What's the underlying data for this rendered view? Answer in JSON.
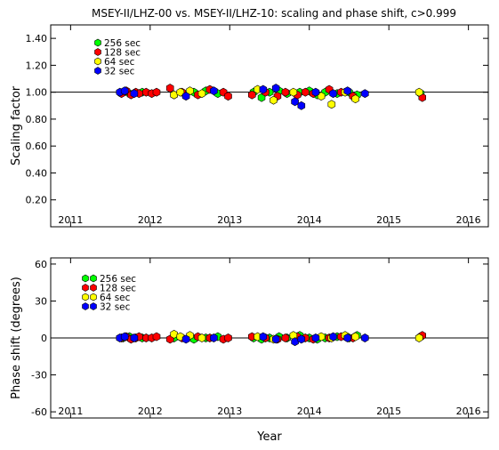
{
  "title": "MSEY-II/LHZ-00 vs. MSEY-II/LHZ-10: scaling and phase shift, c>0.999",
  "colors": {
    "s256": "#00ff00",
    "s128": "#ff0000",
    "s64": "#ffff00",
    "s32": "#0000ff",
    "marker_edge": "#000000",
    "axis": "#000000"
  },
  "chart_data": [
    {
      "type": "scatter",
      "ylabel": "Scaling factor",
      "xlabel": "",
      "xlim": [
        2010.75,
        2016.25
      ],
      "ylim": [
        0,
        1.5
      ],
      "x_ticks": [
        2011,
        2012,
        2013,
        2014,
        2015,
        2016
      ],
      "x_tick_labels": [
        "2011",
        "2012",
        "2013",
        "2014",
        "2015",
        "2016"
      ],
      "y_ticks": [
        0.2,
        0.4,
        0.6,
        0.8,
        1.0,
        1.2,
        1.4
      ],
      "y_tick_labels": [
        "0.20",
        "0.40",
        "0.60",
        "0.80",
        "1.00",
        "1.20",
        "1.40"
      ],
      "reference_line": 1.0,
      "legend": [
        "256 sec",
        "128 sec",
        "64 sec",
        "32 sec"
      ],
      "legend_placement": "top-left",
      "series": [
        {
          "name": "256 sec",
          "points": [
            [
              2011.66,
              1.0
            ],
            [
              2011.74,
              0.99
            ],
            [
              2011.9,
              1.0
            ],
            [
              2012.3,
              0.98
            ],
            [
              2012.55,
              1.0
            ],
            [
              2012.7,
              1.01
            ],
            [
              2012.85,
              0.99
            ],
            [
              2013.3,
              1.0
            ],
            [
              2013.4,
              0.96
            ],
            [
              2013.5,
              1.0
            ],
            [
              2013.62,
              1.01
            ],
            [
              2013.72,
              0.99
            ],
            [
              2013.88,
              1.0
            ],
            [
              2014.0,
              1.01
            ],
            [
              2014.1,
              0.98
            ],
            [
              2014.2,
              1.0
            ],
            [
              2014.35,
              0.99
            ],
            [
              2014.5,
              1.0
            ],
            [
              2014.6,
              0.98
            ],
            [
              2015.4,
              0.99
            ]
          ]
        },
        {
          "name": "128 sec",
          "points": [
            [
              2011.64,
              0.99
            ],
            [
              2011.7,
              1.01
            ],
            [
              2011.76,
              0.98
            ],
            [
              2011.82,
              1.0
            ],
            [
              2011.86,
              0.99
            ],
            [
              2011.95,
              1.0
            ],
            [
              2012.02,
              0.99
            ],
            [
              2012.08,
              1.0
            ],
            [
              2012.25,
              1.03
            ],
            [
              2012.4,
              1.0
            ],
            [
              2012.6,
              0.98
            ],
            [
              2012.75,
              1.02
            ],
            [
              2012.92,
              1.0
            ],
            [
              2012.98,
              0.97
            ],
            [
              2013.28,
              0.98
            ],
            [
              2013.45,
              1.0
            ],
            [
              2013.6,
              0.97
            ],
            [
              2013.7,
              1.0
            ],
            [
              2013.85,
              0.98
            ],
            [
              2013.95,
              1.0
            ],
            [
              2014.05,
              0.99
            ],
            [
              2014.25,
              1.02
            ],
            [
              2014.4,
              1.0
            ],
            [
              2014.55,
              0.97
            ],
            [
              2015.42,
              0.96
            ]
          ]
        },
        {
          "name": "64 sec",
          "points": [
            [
              2012.3,
              0.98
            ],
            [
              2012.38,
              1.0
            ],
            [
              2012.5,
              1.01
            ],
            [
              2012.65,
              0.99
            ],
            [
              2013.35,
              1.02
            ],
            [
              2013.55,
              0.94
            ],
            [
              2013.8,
              1.0
            ],
            [
              2014.15,
              0.97
            ],
            [
              2014.28,
              0.91
            ],
            [
              2014.45,
              1.0
            ],
            [
              2014.58,
              0.95
            ],
            [
              2015.38,
              1.0
            ]
          ]
        },
        {
          "name": "32 sec",
          "points": [
            [
              2011.62,
              1.0
            ],
            [
              2011.68,
              1.01
            ],
            [
              2011.8,
              0.99
            ],
            [
              2012.45,
              0.97
            ],
            [
              2012.8,
              1.01
            ],
            [
              2013.42,
              1.02
            ],
            [
              2013.58,
              1.03
            ],
            [
              2013.82,
              0.93
            ],
            [
              2013.9,
              0.9
            ],
            [
              2014.08,
              1.0
            ],
            [
              2014.3,
              0.99
            ],
            [
              2014.48,
              1.01
            ],
            [
              2014.7,
              0.99
            ]
          ]
        }
      ]
    },
    {
      "type": "scatter",
      "ylabel": "Phase shift (degrees)",
      "xlabel": "Year",
      "xlim": [
        2010.75,
        2016.25
      ],
      "ylim": [
        -65,
        65
      ],
      "x_ticks": [
        2011,
        2012,
        2013,
        2014,
        2015,
        2016
      ],
      "x_tick_labels": [
        "2011",
        "2012",
        "2013",
        "2014",
        "2015",
        "2016"
      ],
      "y_ticks": [
        -60,
        -30,
        0,
        30,
        60
      ],
      "y_tick_labels": [
        "-60",
        "-30",
        "0",
        "30",
        "60"
      ],
      "reference_line": 0,
      "legend": [
        "256 sec",
        "128 sec",
        "64 sec",
        "32 sec"
      ],
      "legend_placement": "top-left",
      "series": [
        {
          "name": "256 sec",
          "points": [
            [
              2011.66,
              0
            ],
            [
              2011.74,
              1
            ],
            [
              2011.9,
              0
            ],
            [
              2012.3,
              0
            ],
            [
              2012.55,
              -1
            ],
            [
              2012.7,
              0
            ],
            [
              2012.85,
              1
            ],
            [
              2013.3,
              0
            ],
            [
              2013.4,
              -1
            ],
            [
              2013.5,
              0
            ],
            [
              2013.62,
              1
            ],
            [
              2013.72,
              0
            ],
            [
              2013.88,
              2
            ],
            [
              2014.0,
              0
            ],
            [
              2014.1,
              -1
            ],
            [
              2014.2,
              0
            ],
            [
              2014.35,
              1
            ],
            [
              2014.5,
              0
            ],
            [
              2014.6,
              2
            ],
            [
              2015.4,
              1
            ]
          ]
        },
        {
          "name": "128 sec",
          "points": [
            [
              2011.64,
              0
            ],
            [
              2011.7,
              1
            ],
            [
              2011.76,
              -1
            ],
            [
              2011.82,
              0
            ],
            [
              2011.86,
              1
            ],
            [
              2011.95,
              0
            ],
            [
              2012.02,
              0
            ],
            [
              2012.08,
              1
            ],
            [
              2012.25,
              -1
            ],
            [
              2012.4,
              0
            ],
            [
              2012.6,
              1
            ],
            [
              2012.75,
              0
            ],
            [
              2012.92,
              -1
            ],
            [
              2012.98,
              0
            ],
            [
              2013.28,
              1
            ],
            [
              2013.45,
              0
            ],
            [
              2013.6,
              -1
            ],
            [
              2013.7,
              0
            ],
            [
              2013.85,
              1
            ],
            [
              2013.95,
              0
            ],
            [
              2014.05,
              -1
            ],
            [
              2014.25,
              0
            ],
            [
              2014.4,
              1
            ],
            [
              2014.55,
              0
            ],
            [
              2015.42,
              2
            ]
          ]
        },
        {
          "name": "64 sec",
          "points": [
            [
              2012.3,
              3
            ],
            [
              2012.38,
              1
            ],
            [
              2012.5,
              2
            ],
            [
              2012.65,
              0
            ],
            [
              2013.35,
              1
            ],
            [
              2013.55,
              -1
            ],
            [
              2013.8,
              2
            ],
            [
              2014.15,
              1
            ],
            [
              2014.28,
              0
            ],
            [
              2014.45,
              2
            ],
            [
              2014.58,
              1
            ],
            [
              2015.38,
              0
            ]
          ]
        },
        {
          "name": "32 sec",
          "points": [
            [
              2011.62,
              0
            ],
            [
              2011.68,
              1
            ],
            [
              2011.8,
              0
            ],
            [
              2012.45,
              -1
            ],
            [
              2012.8,
              0
            ],
            [
              2013.42,
              1
            ],
            [
              2013.58,
              -1
            ],
            [
              2013.82,
              -3
            ],
            [
              2013.9,
              -1
            ],
            [
              2014.08,
              0
            ],
            [
              2014.3,
              1
            ],
            [
              2014.48,
              0
            ],
            [
              2014.7,
              0
            ]
          ]
        }
      ]
    }
  ]
}
